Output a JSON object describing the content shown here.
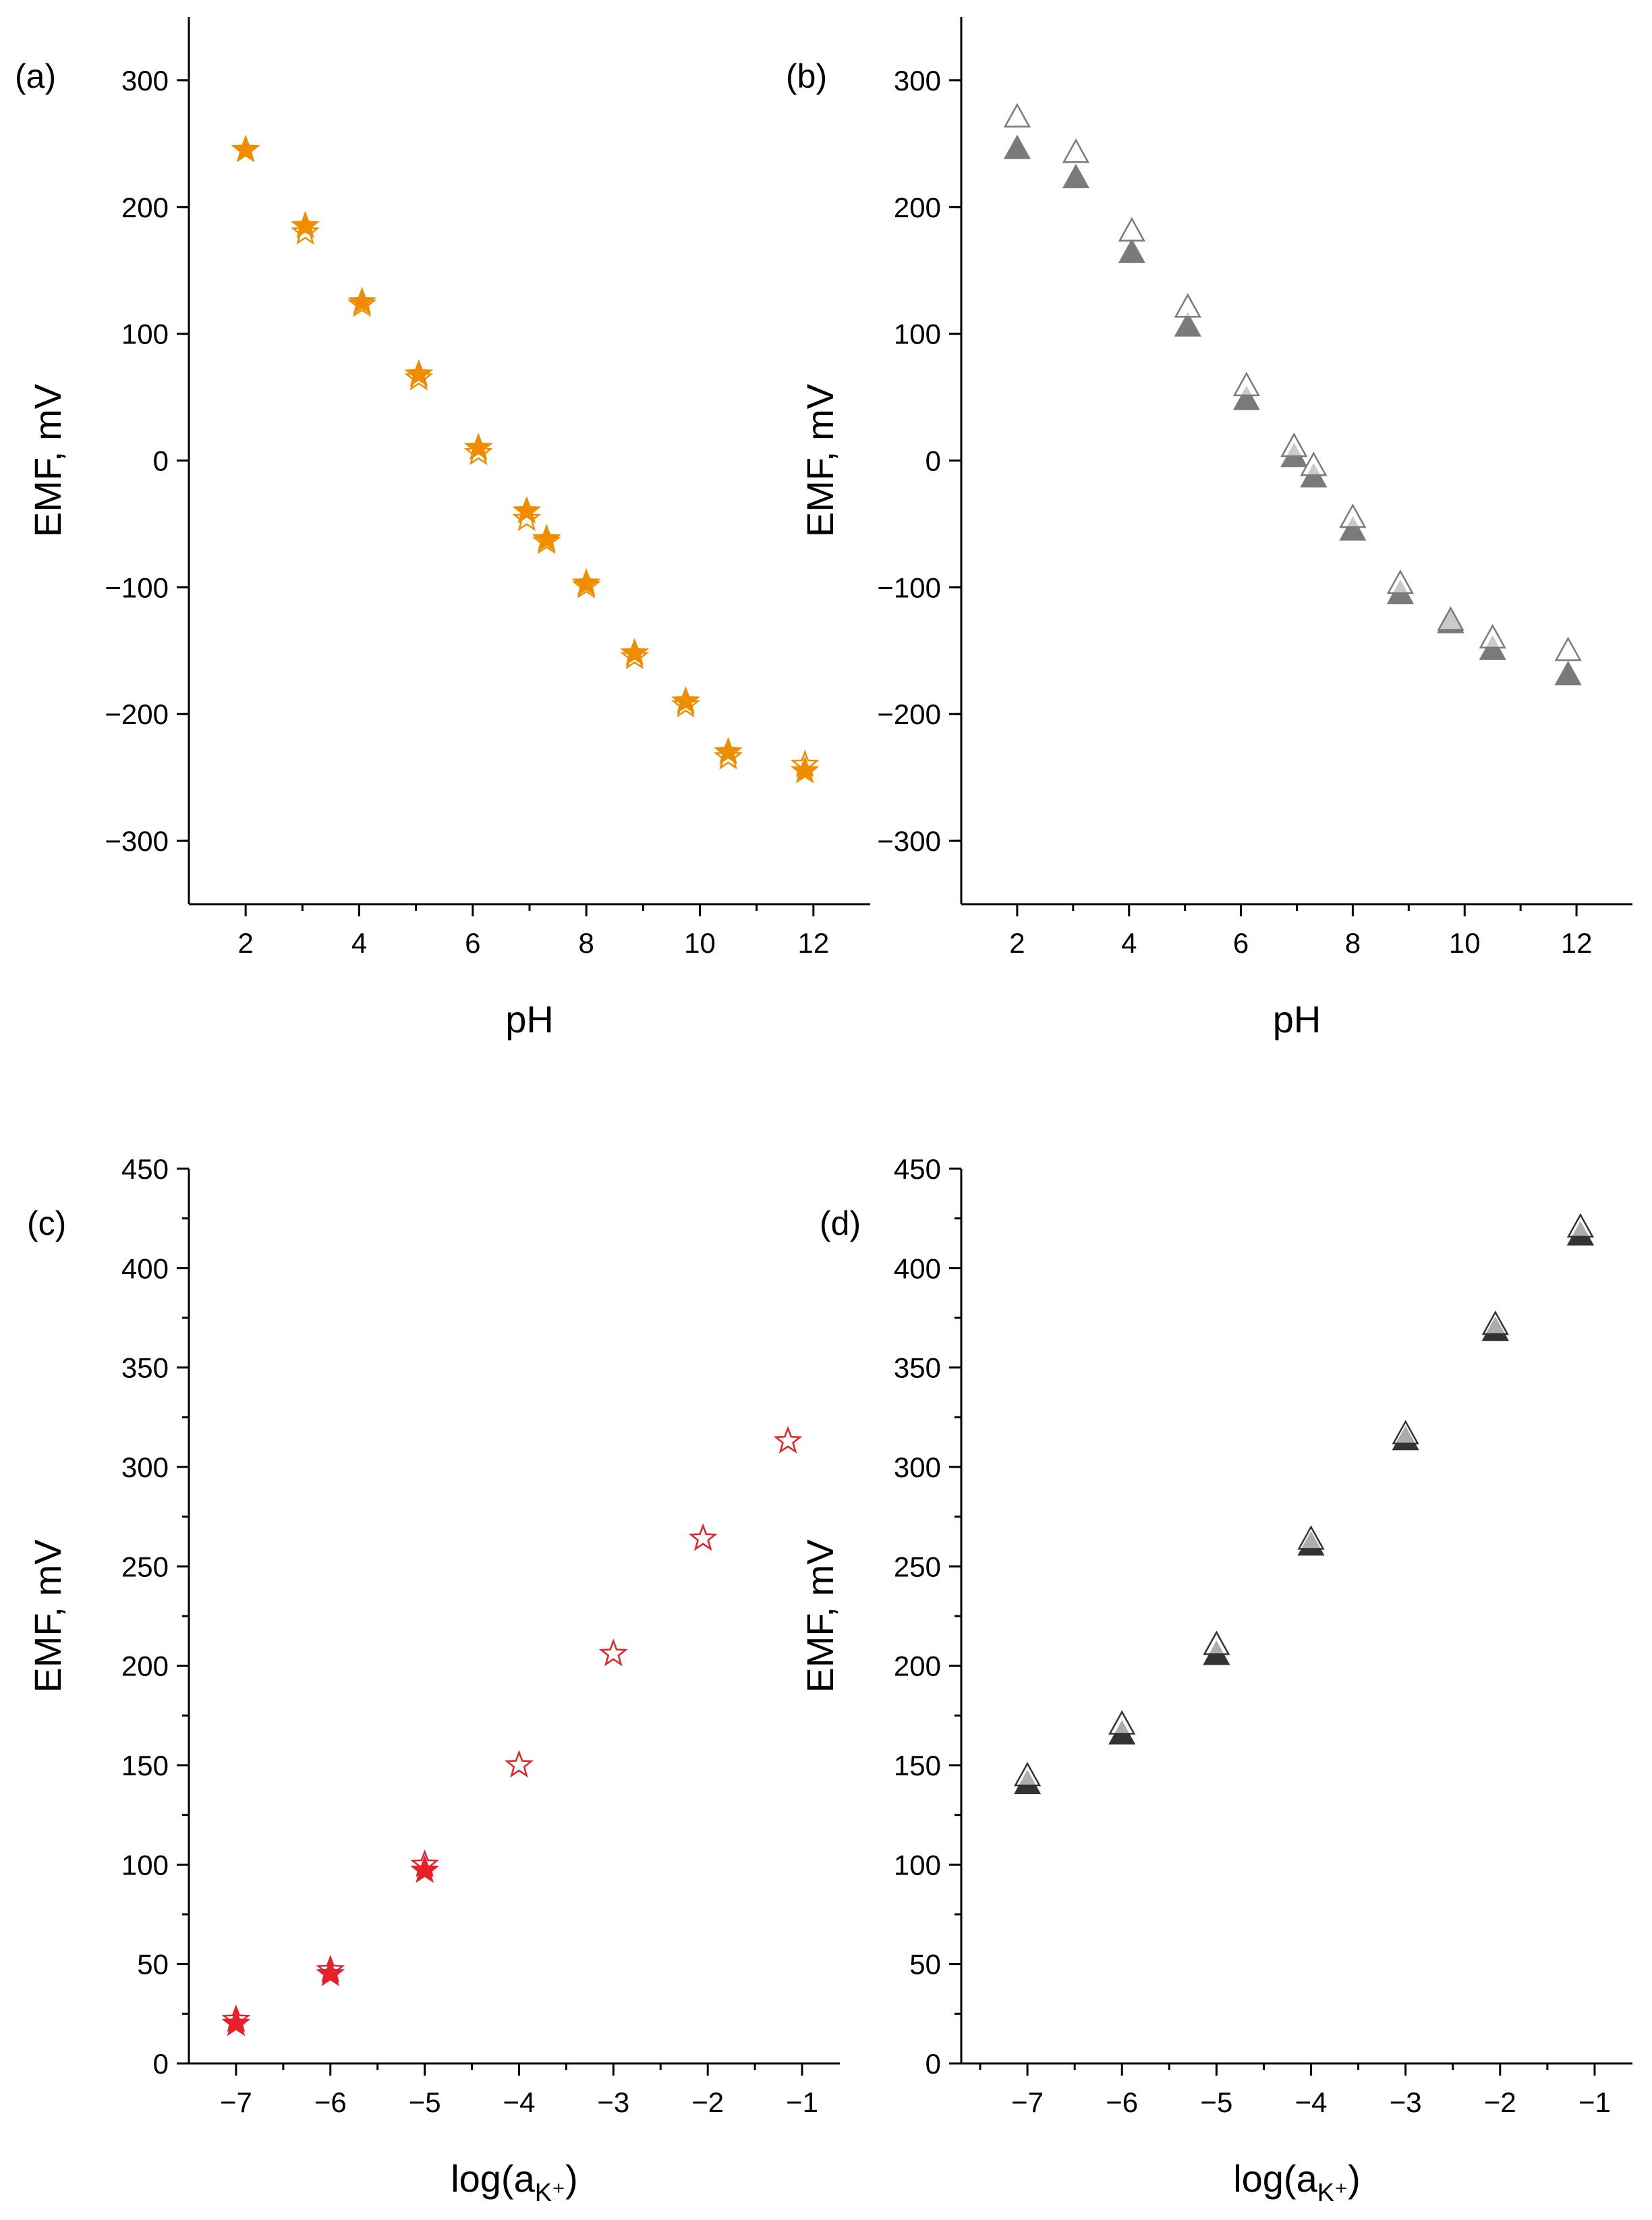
{
  "chart_data": [
    {
      "id": "a",
      "panel_label": "(a)",
      "type": "scatter",
      "xlabel": "pH",
      "ylabel": "EMF, mV",
      "xlim": [
        1,
        13
      ],
      "ylim": [
        -350,
        350
      ],
      "xticks": [
        2,
        4,
        6,
        8,
        10,
        12
      ],
      "yticks": [
        -300,
        -200,
        -100,
        0,
        100,
        200,
        300
      ],
      "xtick_labels": [
        "2",
        "4",
        "6",
        "8",
        "10",
        "12"
      ],
      "ytick_labels": [
        "−300",
        "−200",
        "−100",
        "0",
        "100",
        "200",
        "300"
      ],
      "series": [
        {
          "name": "filled",
          "marker": "star",
          "filled": true,
          "color": "#F08C00",
          "x": [
            2.0,
            3.05,
            4.05,
            5.05,
            6.1,
            6.95,
            7.3,
            8.0,
            8.85,
            9.75,
            10.5,
            11.85
          ],
          "y": [
            245,
            185,
            125,
            68,
            10,
            -40,
            -62,
            -97,
            -152,
            -190,
            -230,
            -245
          ]
        },
        {
          "name": "open",
          "marker": "star",
          "filled": false,
          "color": "#F08C00",
          "x": [
            2.0,
            3.05,
            4.05,
            5.05,
            6.1,
            6.95,
            7.3,
            8.0,
            8.85,
            9.75,
            10.5,
            11.85
          ],
          "y": [
            245,
            180,
            123,
            65,
            6,
            -46,
            -64,
            -99,
            -155,
            -193,
            -234,
            -240
          ]
        }
      ]
    },
    {
      "id": "b",
      "panel_label": "(b)",
      "type": "scatter",
      "xlabel": "pH",
      "ylabel": "EMF, mV",
      "xlim": [
        1,
        13
      ],
      "ylim": [
        -350,
        350
      ],
      "xticks": [
        2,
        4,
        6,
        8,
        10,
        12
      ],
      "yticks": [
        -300,
        -200,
        -100,
        0,
        100,
        200,
        300
      ],
      "xtick_labels": [
        "2",
        "4",
        "6",
        "8",
        "10",
        "12"
      ],
      "ytick_labels": [
        "−300",
        "−200",
        "−100",
        "0",
        "100",
        "200",
        "300"
      ],
      "series": [
        {
          "name": "filled",
          "marker": "triangle",
          "filled": true,
          "color": "#7a7a7a",
          "x": [
            2.0,
            3.05,
            4.05,
            5.05,
            6.1,
            6.95,
            7.3,
            8.0,
            8.85,
            9.75,
            10.5,
            11.85
          ],
          "y": [
            245,
            222,
            163,
            105,
            47,
            2,
            -14,
            -56,
            -106,
            -129,
            -150,
            -170
          ]
        },
        {
          "name": "open",
          "marker": "triangle",
          "filled": false,
          "color": "#7a7a7a",
          "x": [
            2.0,
            3.05,
            4.05,
            5.05,
            6.1,
            6.95,
            7.3,
            8.0,
            8.85,
            9.75,
            10.5,
            11.85
          ],
          "y": [
            270,
            242,
            180,
            120,
            58,
            10,
            -5,
            -46,
            -98,
            -127,
            -141,
            -151
          ]
        }
      ]
    },
    {
      "id": "c",
      "panel_label": "(c)",
      "type": "scatter",
      "xlabel": "log(a",
      "xlabel_sub": "K⁺",
      "xlabel_end": ")",
      "ylabel": "EMF, mV",
      "xlim": [
        -7.5,
        -0.6
      ],
      "ylim": [
        0,
        450
      ],
      "xticks": [
        -7,
        -6,
        -5,
        -4,
        -3,
        -2,
        -1
      ],
      "yticks": [
        0,
        50,
        100,
        150,
        200,
        250,
        300,
        350,
        400,
        450
      ],
      "xtick_labels": [
        "−7",
        "−6",
        "−5",
        "−4",
        "−3",
        "−2",
        "−1"
      ],
      "ytick_labels": [
        "0",
        "50",
        "100",
        "150",
        "200",
        "250",
        "300",
        "350",
        "400",
        "450"
      ],
      "series": [
        {
          "name": "filled",
          "marker": "star",
          "filled": true,
          "color": "#E8202A",
          "x": [
            -7.0,
            -6.0,
            -5.0
          ],
          "y": [
            20,
            45,
            97
          ]
        },
        {
          "name": "open",
          "marker": "star",
          "filled": false,
          "color": "#E8202A",
          "x": [
            -7.0,
            -6.0,
            -5.0,
            -4.0,
            -3.0,
            -2.05,
            -1.15
          ],
          "y": [
            22,
            47,
            100,
            150,
            206,
            264,
            313
          ]
        }
      ]
    },
    {
      "id": "d",
      "panel_label": "(d)",
      "type": "scatter",
      "xlabel": "log(a",
      "xlabel_sub": "K⁺",
      "xlabel_end": ")",
      "ylabel": "EMF, mV",
      "xlim": [
        -7.7,
        -0.6
      ],
      "ylim": [
        0,
        450
      ],
      "xticks": [
        -7,
        -6,
        -5,
        -4,
        -3,
        -2,
        -1
      ],
      "yticks": [
        0,
        50,
        100,
        150,
        200,
        250,
        300,
        350,
        400,
        450
      ],
      "xtick_labels": [
        "−7",
        "−6",
        "−5",
        "−4",
        "−3",
        "−2",
        "−1"
      ],
      "ytick_labels": [
        "0",
        "50",
        "100",
        "150",
        "200",
        "250",
        "300",
        "350",
        "400",
        "450"
      ],
      "series": [
        {
          "name": "filled",
          "marker": "triangle",
          "filled": true,
          "color": "#333333",
          "x": [
            -7.0,
            -6.0,
            -5.0,
            -4.0,
            -3.0,
            -2.05,
            -1.15
          ],
          "y": [
            140,
            165,
            205,
            260,
            313,
            368,
            416
          ]
        },
        {
          "name": "open",
          "marker": "triangle",
          "filled": false,
          "color": "#333333",
          "x": [
            -7.0,
            -6.0,
            -5.0,
            -4.0,
            -3.0,
            -2.05,
            -1.15
          ],
          "y": [
            144,
            170,
            210,
            263,
            316,
            371,
            420
          ]
        }
      ]
    }
  ]
}
